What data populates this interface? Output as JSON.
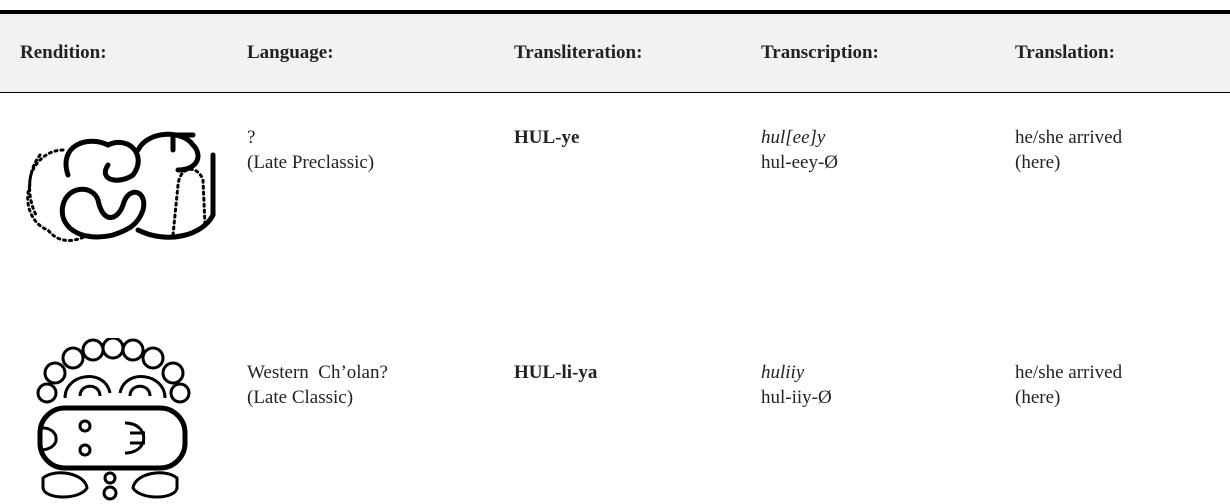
{
  "table": {
    "header": [
      "Rendition:",
      "Language:",
      "Transliteration:",
      "Transcription:",
      "Translation:"
    ],
    "rows": [
      {
        "language": [
          "?",
          "(Late Preclassic)"
        ],
        "transliteration": "HUL-ye",
        "transcription": [
          "hul[ee]y",
          "hul-eey-Ø"
        ],
        "translation": [
          "he/she arrived",
          "(here)"
        ]
      },
      {
        "language": [
          "Western  Ch’olan?",
          "(Late Classic)"
        ],
        "transliteration": "HUL-li-ya",
        "transcription": [
          "huliiy",
          "hul-iiy-Ø"
        ],
        "translation": [
          "he/she arrived",
          "(here)"
        ]
      }
    ]
  }
}
